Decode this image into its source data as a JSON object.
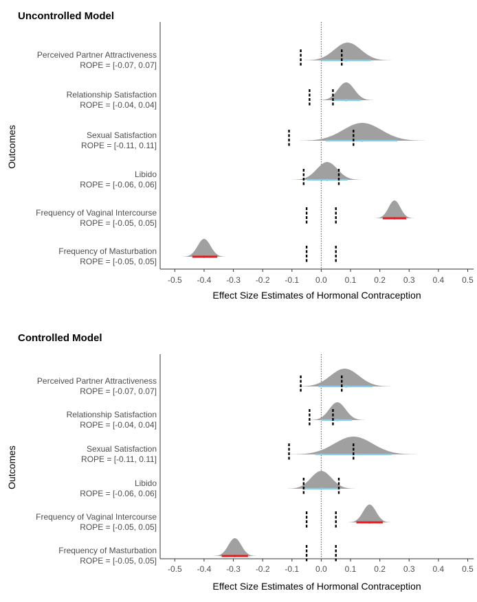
{
  "chart_data": [
    {
      "type": "density",
      "title": "Uncontrolled Model",
      "xlabel": "Effect Size Estimates of Hormonal Contraception",
      "ylabel": "Outcomes",
      "xlim": [
        -0.55,
        0.52
      ],
      "xticks": [
        -0.5,
        -0.4,
        -0.3,
        -0.2,
        -0.1,
        0.0,
        0.1,
        0.2,
        0.3,
        0.4,
        0.5
      ],
      "xtick_labels": [
        "-0.5",
        "-0.4",
        "-0.3",
        "-0.2",
        "-0.1",
        "0.0",
        "0.1",
        "0.2",
        "0.3",
        "0.4",
        "0.5"
      ],
      "zero_line": true,
      "grid": false,
      "colors": {
        "density": "#a0a0a0",
        "interval_inside_rope": "#87ceeb",
        "interval_outside_rope": "#e41a1c",
        "rope": "#000000"
      },
      "outcomes": [
        {
          "line1": "Perceived Partner Attractiveness",
          "line2": "ROPE = [-0.07, 0.07]",
          "rope": [
            -0.07,
            0.07
          ],
          "mean": 0.09,
          "sd": 0.045,
          "ci": [
            0.0,
            0.17
          ],
          "point": 0.085,
          "sig": false
        },
        {
          "line1": "Relationship Satisfaction",
          "line2": "ROPE = [-0.04, 0.04]",
          "rope": [
            -0.04,
            0.04
          ],
          "mean": 0.085,
          "sd": 0.028,
          "ci": [
            0.04,
            0.135
          ],
          "point": 0.085,
          "sig": false
        },
        {
          "line1": "Sexual Satisfaction",
          "line2": "ROPE = [-0.11, 0.11]",
          "rope": [
            -0.11,
            0.11
          ],
          "mean": 0.14,
          "sd": 0.065,
          "ci": [
            0.015,
            0.26
          ],
          "point": 0.14,
          "sig": false
        },
        {
          "line1": "Libido",
          "line2": "ROPE = [-0.06, 0.06]",
          "rope": [
            -0.06,
            0.06
          ],
          "mean": 0.02,
          "sd": 0.035,
          "ci": [
            -0.05,
            0.09
          ],
          "point": 0.02,
          "sig": false
        },
        {
          "line1": "Frequency of Vaginal Intercourse",
          "line2": "ROPE = [-0.05, 0.05]",
          "rope": [
            -0.05,
            0.05
          ],
          "mean": 0.25,
          "sd": 0.02,
          "ci": [
            0.21,
            0.29
          ],
          "point": 0.25,
          "sig": true
        },
        {
          "line1": "Frequency of Masturbation",
          "line2": "ROPE = [-0.05, 0.05]",
          "rope": [
            -0.05,
            0.05
          ],
          "mean": -0.4,
          "sd": 0.022,
          "ci": [
            -0.44,
            -0.355
          ],
          "point": -0.4,
          "sig": true
        }
      ]
    },
    {
      "type": "density",
      "title": "Controlled Model",
      "xlabel": "Effect Size Estimates of Hormonal Contraception",
      "ylabel": "Outcomes",
      "xlim": [
        -0.55,
        0.52
      ],
      "xticks": [
        -0.5,
        -0.4,
        -0.3,
        -0.2,
        -0.1,
        0.0,
        0.1,
        0.2,
        0.3,
        0.4,
        0.5
      ],
      "xtick_labels": [
        "-0.5",
        "-0.4",
        "-0.3",
        "-0.2",
        "-0.1",
        "0.0",
        "0.1",
        "0.2",
        "0.3",
        "0.4",
        "0.5"
      ],
      "zero_line": true,
      "grid": false,
      "colors": {
        "density": "#a0a0a0",
        "interval_inside_rope": "#87ceeb",
        "interval_outside_rope": "#e41a1c",
        "rope": "#000000"
      },
      "outcomes": [
        {
          "line1": "Perceived Partner Attractiveness",
          "line2": "ROPE = [-0.07, 0.07]",
          "rope": [
            -0.07,
            0.07
          ],
          "mean": 0.08,
          "sd": 0.048,
          "ci": [
            -0.01,
            0.175
          ],
          "point": 0.085,
          "sig": false
        },
        {
          "line1": "Relationship Satisfaction",
          "line2": "ROPE = [-0.04, 0.04]",
          "rope": [
            -0.04,
            0.04
          ],
          "mean": 0.055,
          "sd": 0.028,
          "ci": [
            0.0,
            0.105
          ],
          "point": 0.055,
          "sig": false
        },
        {
          "line1": "Sexual Satisfaction",
          "line2": "ROPE = [-0.11, 0.11]",
          "rope": [
            -0.11,
            0.11
          ],
          "mean": 0.11,
          "sd": 0.065,
          "ci": [
            -0.02,
            0.24
          ],
          "point": 0.11,
          "sig": false
        },
        {
          "line1": "Libido",
          "line2": "ROPE = [-0.06, 0.06]",
          "rope": [
            -0.06,
            0.06
          ],
          "mean": 0.0,
          "sd": 0.035,
          "ci": [
            -0.06,
            0.06
          ],
          "point": 0.0,
          "sig": false
        },
        {
          "line1": "Frequency of Vaginal Intercourse",
          "line2": "ROPE = [-0.05, 0.05]",
          "rope": [
            -0.05,
            0.05
          ],
          "mean": 0.165,
          "sd": 0.022,
          "ci": [
            0.12,
            0.21
          ],
          "point": 0.165,
          "sig": true
        },
        {
          "line1": "Frequency of Masturbation",
          "line2": "ROPE = [-0.05, 0.05]",
          "rope": [
            -0.05,
            0.05
          ],
          "mean": -0.295,
          "sd": 0.022,
          "ci": [
            -0.34,
            -0.25
          ],
          "point": -0.295,
          "sig": true
        }
      ]
    }
  ]
}
